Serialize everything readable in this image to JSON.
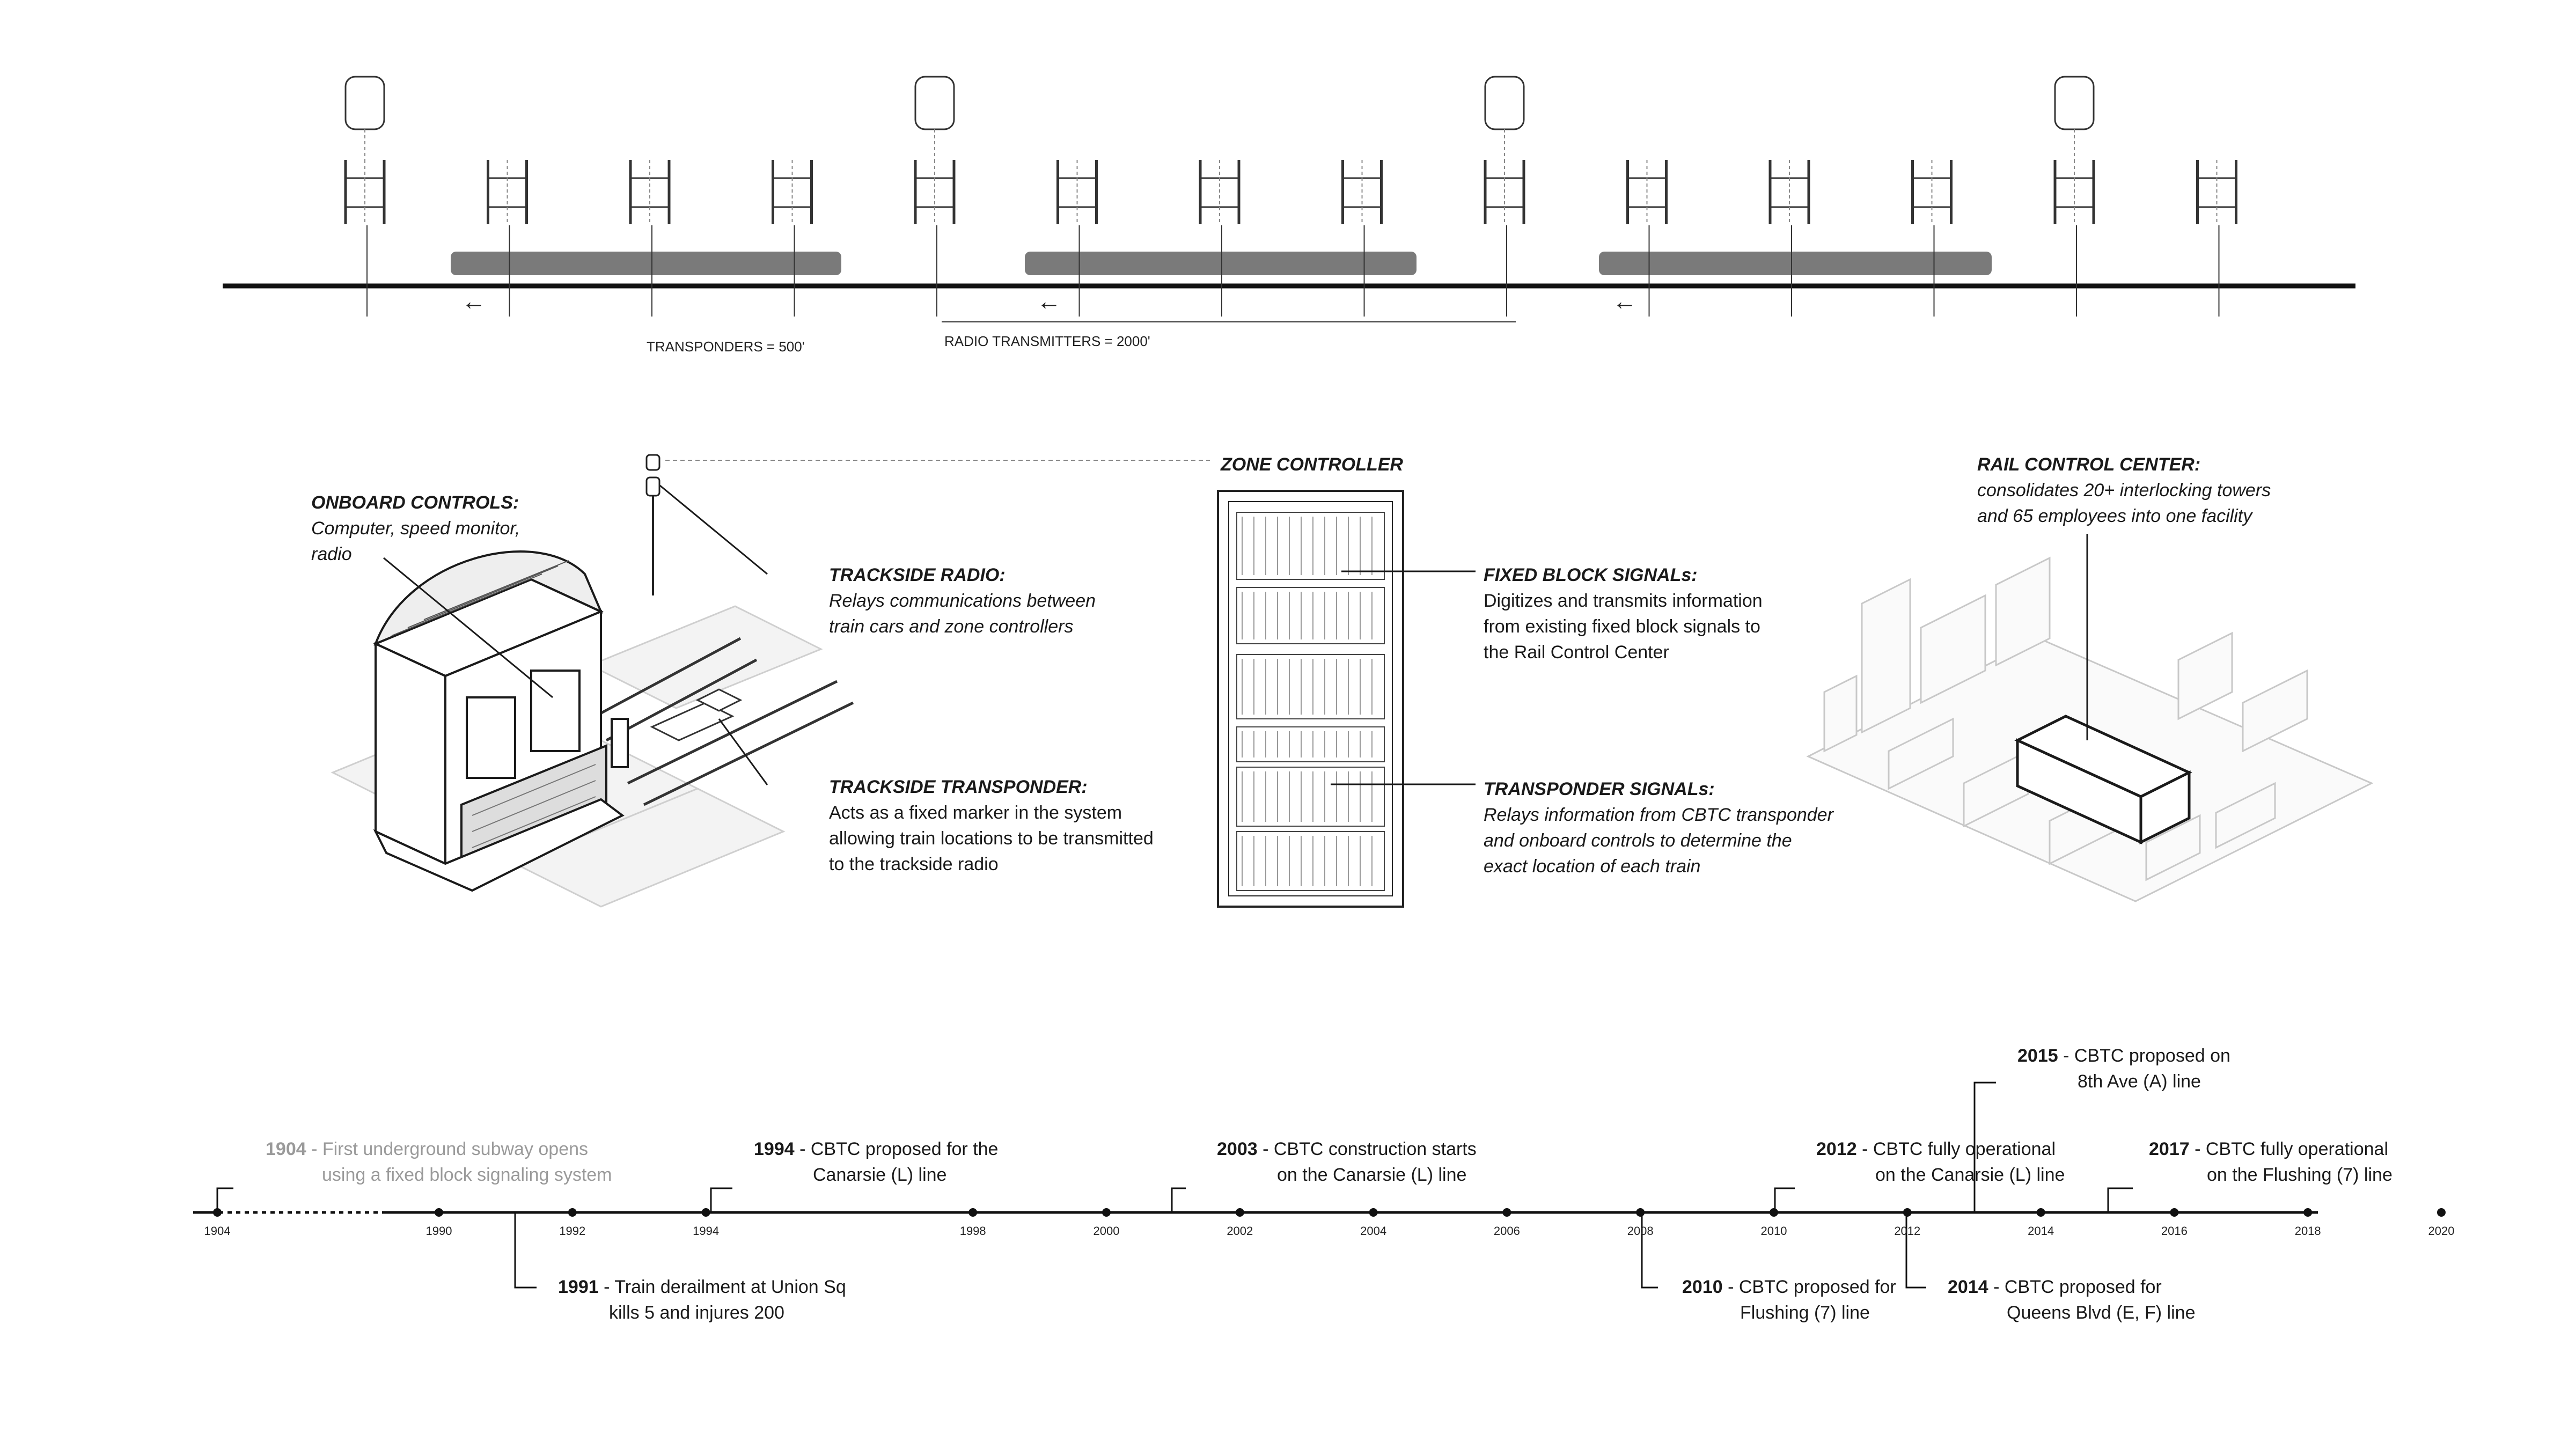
{
  "track": {
    "transponders_label": "TRANSPONDERS = 500'",
    "radio_label": "RADIO TRANSMITTERS = 2000'",
    "direction_arrow": "←"
  },
  "components": {
    "onboard": {
      "title": "ONBOARD CONTROLS:",
      "lines": [
        "Computer, speed monitor,",
        "radio"
      ]
    },
    "radio": {
      "title": "TRACKSIDE RADIO:",
      "lines": [
        "Relays communications between",
        "train cars and zone controllers"
      ]
    },
    "transponder": {
      "title": "TRACKSIDE TRANSPONDER:",
      "lines": [
        "Acts as a fixed marker in the system",
        "allowing train locations to be transmitted",
        "to the trackside radio"
      ]
    },
    "zone": {
      "title": "ZONE CONTROLLER"
    },
    "fixed_block": {
      "title": "FIXED BLOCK SIGNALs:",
      "lines": [
        "Digitizes and transmits information",
        "from existing fixed block signals to",
        "the Rail Control Center"
      ]
    },
    "transponder_signals": {
      "title": "TRANSPONDER SIGNALs:",
      "lines": [
        "Relays information from CBTC transponder",
        "and onboard controls to determine the",
        "exact location of each train"
      ]
    },
    "rcc": {
      "title": "RAIL CONTROL CENTER:",
      "lines": [
        "consolidates 20+ interlocking towers",
        "and 65 employees into one facility"
      ]
    }
  },
  "timeline": {
    "ticks": [
      "1904",
      "1990",
      "1992",
      "1994",
      "1998",
      "2000",
      "2002",
      "2004",
      "2006",
      "2008",
      "2010",
      "2012",
      "2014",
      "2016",
      "2018",
      "2020"
    ],
    "events": [
      {
        "year": "1904",
        "text": " - First underground subway opens",
        "line2": "using a fixed block signaling system"
      },
      {
        "year": "1994",
        "text": " - CBTC proposed for the",
        "line2": "Canarsie (L) line"
      },
      {
        "year": "2003",
        "text": " - CBTC construction starts",
        "line2": "on the Canarsie (L) line"
      },
      {
        "year": "2012",
        "text": " - CBTC fully operational",
        "line2": "on the Canarsie (L) line"
      },
      {
        "year": "2015",
        "text": " - CBTC proposed on",
        "line2": "8th Ave (A) line"
      },
      {
        "year": "2017",
        "text": " - CBTC fully operational",
        "line2": "on the Flushing (7) line"
      },
      {
        "year": "1991",
        "text": " - Train derailment at Union Sq",
        "line2": "kills 5 and  injures 200"
      },
      {
        "year": "2010",
        "text": " - CBTC proposed for",
        "line2": "Flushing (7) line"
      },
      {
        "year": "2014",
        "text": " - CBTC proposed for",
        "line2": "Queens Blvd (E, F) line"
      }
    ]
  }
}
